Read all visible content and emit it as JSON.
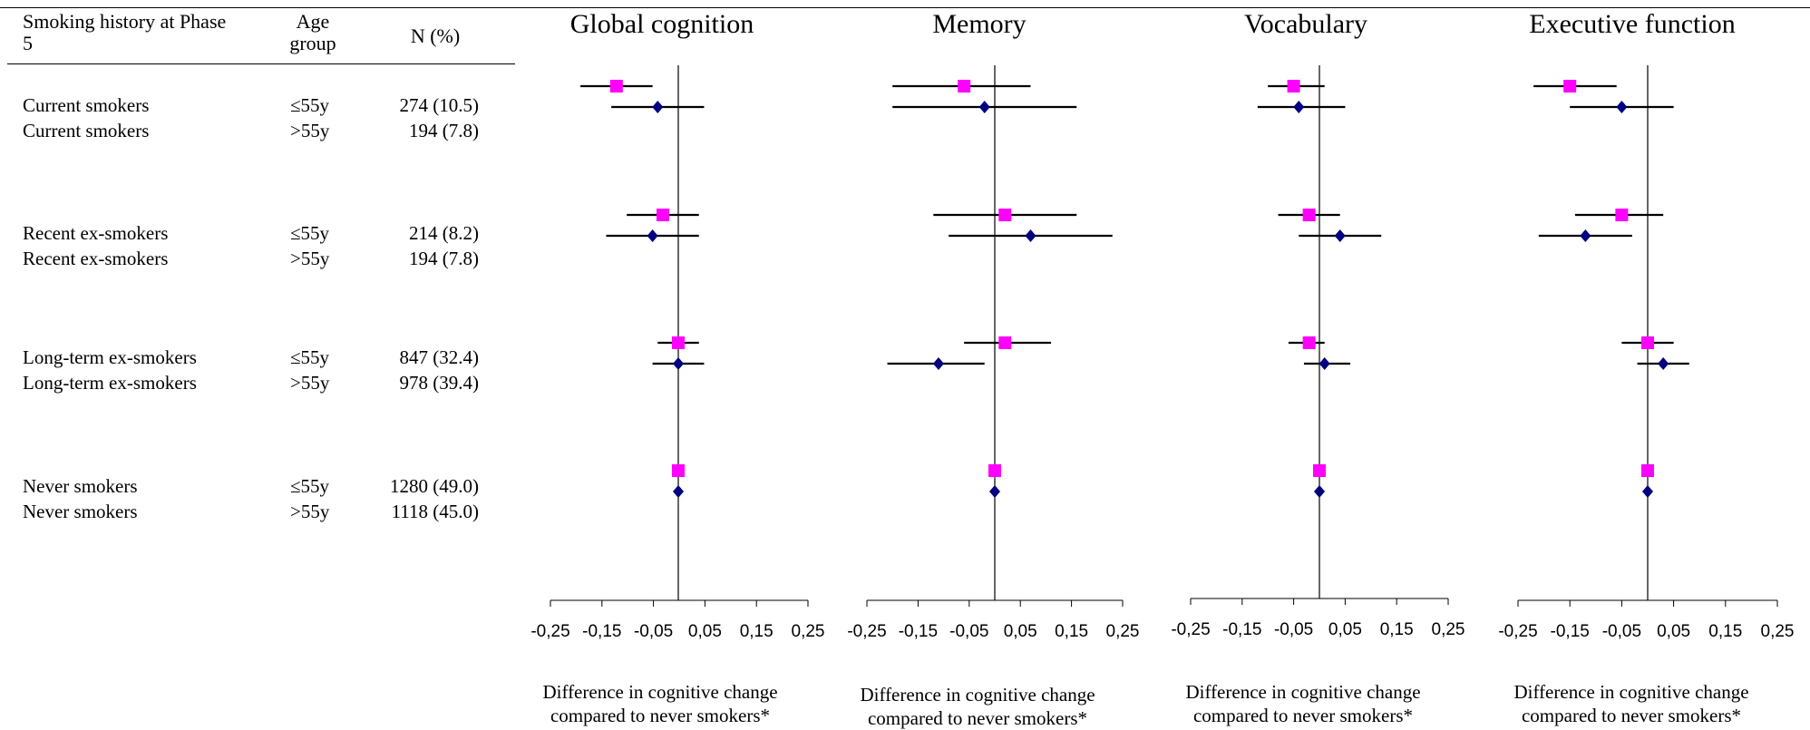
{
  "table": {
    "headers": {
      "history": "Smoking history at Phase 5",
      "age": "Age group",
      "n": "N (%)"
    },
    "rows": [
      {
        "history": "Current smokers",
        "age": "≤55y",
        "n": "274 (10.5)"
      },
      {
        "history": "Current smokers",
        "age": ">55y",
        "n": "194 (7.8)"
      },
      {
        "history": "Recent ex-smokers",
        "age": "≤55y",
        "n": "214 (8.2)"
      },
      {
        "history": "Recent ex-smokers",
        "age": ">55y",
        "n": "194 (7.8)"
      },
      {
        "history": "Long-term ex-smokers",
        "age": "≤55y",
        "n": "847 (32.4)"
      },
      {
        "history": "Long-term ex-smokers",
        "age": ">55y",
        "n": "978 (39.4)"
      },
      {
        "history": "Never smokers",
        "age": "≤55y",
        "n": "1280 (49.0)"
      },
      {
        "history": "Never smokers",
        "age": ">55y",
        "n": "1118 (45.0)"
      }
    ]
  },
  "chart_data": {
    "type": "forest",
    "categories": [
      "Current smokers ≤55y",
      "Current smokers >55y",
      "Recent ex-smokers ≤55y",
      "Recent ex-smokers >55y",
      "Long-term ex-smokers ≤55y",
      "Long-term ex-smokers >55y",
      "Never smokers ≤55y",
      "Never smokers >55y"
    ],
    "xlim": [
      -0.25,
      0.25
    ],
    "x_ticks": [
      "-0,25",
      "-0,15",
      "-0,05",
      "0,05",
      "0,15",
      "0,25"
    ],
    "xlabel": "Difference in cognitive change compared to never smokers*",
    "marker_colors": {
      "le55": "#ff00ff",
      "gt55": "#000080"
    },
    "panels": [
      {
        "title": "Global cognition",
        "estimates": [
          -0.12,
          -0.04,
          -0.03,
          -0.05,
          0.0,
          0.0,
          0.0,
          0.0
        ],
        "ci_low": [
          -0.19,
          -0.13,
          -0.1,
          -0.14,
          -0.04,
          -0.05,
          null,
          null
        ],
        "ci_high": [
          -0.05,
          0.05,
          0.04,
          0.04,
          0.04,
          0.05,
          null,
          null
        ]
      },
      {
        "title": "Memory",
        "estimates": [
          -0.06,
          -0.02,
          0.02,
          0.07,
          0.02,
          -0.11,
          0.0,
          0.0
        ],
        "ci_low": [
          -0.2,
          -0.2,
          -0.12,
          -0.09,
          -0.06,
          -0.21,
          null,
          null
        ],
        "ci_high": [
          0.07,
          0.16,
          0.16,
          0.23,
          0.11,
          -0.02,
          null,
          null
        ]
      },
      {
        "title": "Vocabulary",
        "estimates": [
          -0.05,
          -0.04,
          -0.02,
          0.04,
          -0.02,
          0.01,
          0.0,
          0.0
        ],
        "ci_low": [
          -0.1,
          -0.12,
          -0.08,
          -0.04,
          -0.06,
          -0.03,
          null,
          null
        ],
        "ci_high": [
          0.01,
          0.05,
          0.04,
          0.12,
          0.01,
          0.06,
          null,
          null
        ]
      },
      {
        "title": "Executive function",
        "estimates": [
          -0.15,
          -0.05,
          -0.05,
          -0.12,
          0.0,
          0.03,
          0.0,
          0.0
        ],
        "ci_low": [
          -0.22,
          -0.15,
          -0.14,
          -0.21,
          -0.05,
          -0.02,
          null,
          null
        ],
        "ci_high": [
          -0.06,
          0.05,
          0.03,
          -0.03,
          0.05,
          0.08,
          null,
          null
        ]
      }
    ]
  }
}
